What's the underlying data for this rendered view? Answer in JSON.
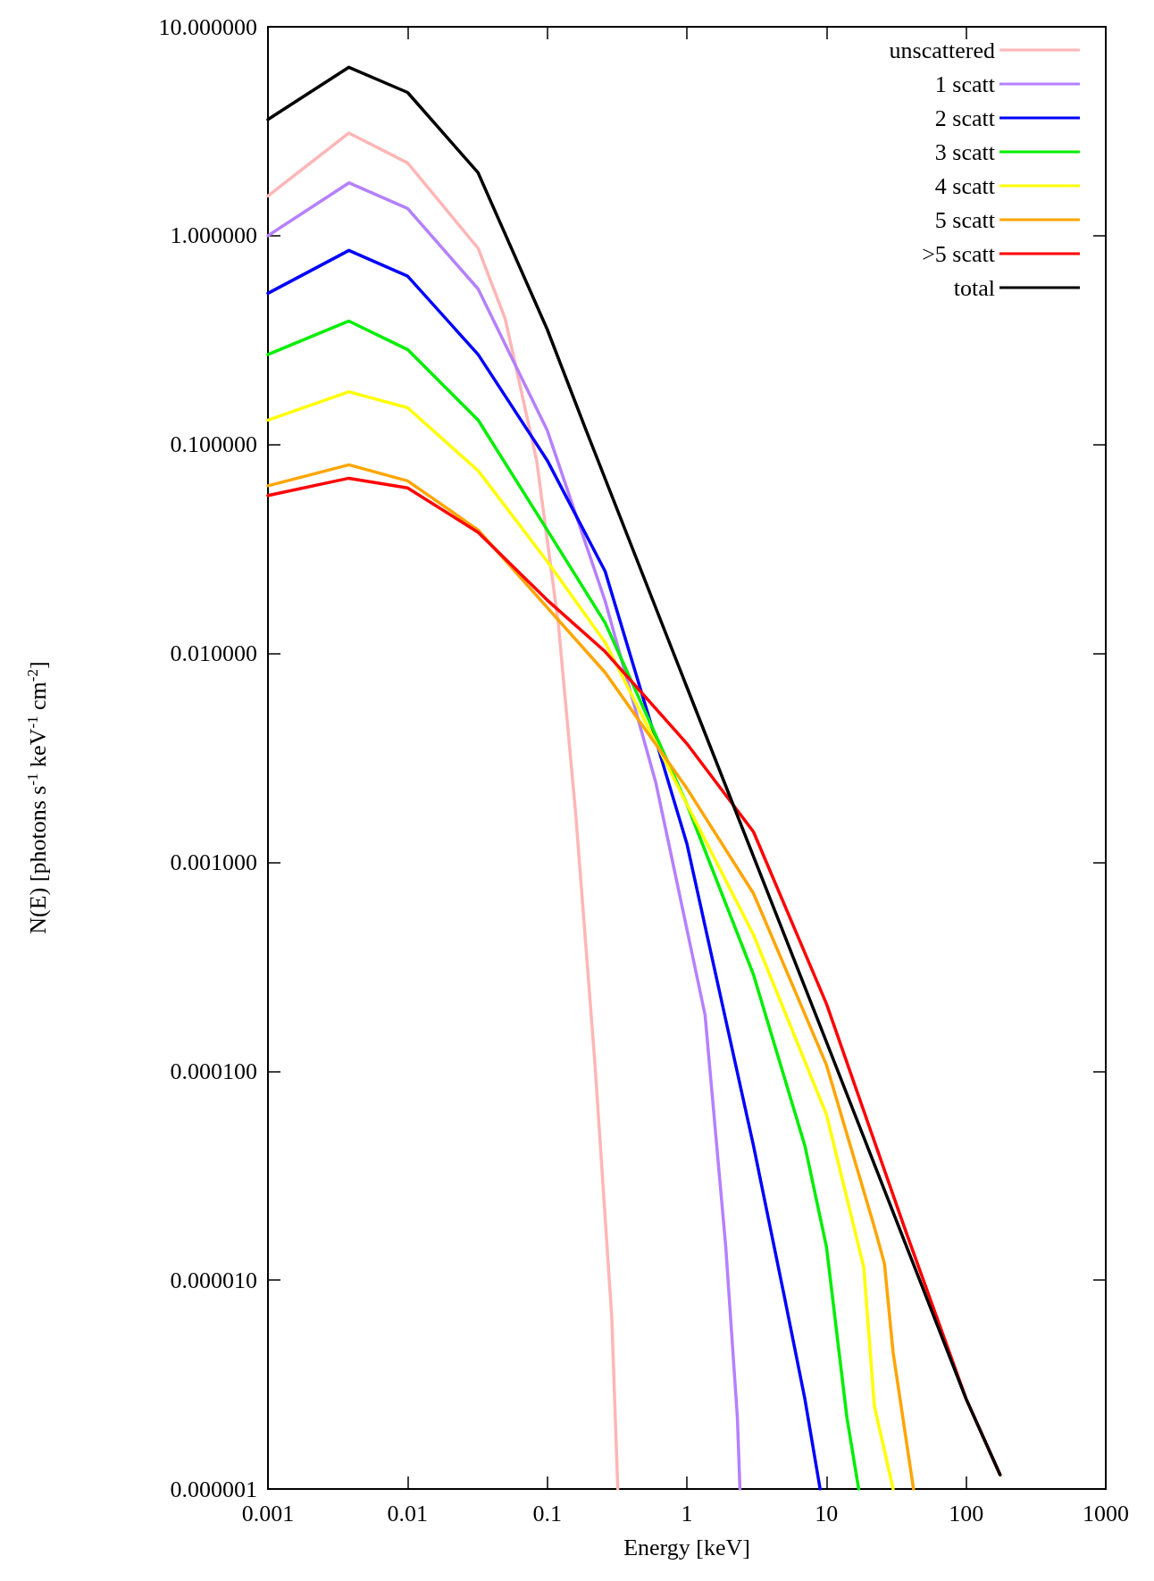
{
  "chart_data": {
    "type": "line",
    "xlabel": "Energy [keV]",
    "ylabel": "N(E) [photons s$^{-1}$ keV$^{-1}$ cm$^{-2}$]",
    "log": "xy",
    "xlim": [
      0.001,
      1000
    ],
    "ylim": [
      1e-06,
      10
    ],
    "xticks": [
      0.001,
      0.01,
      0.1,
      1,
      10,
      100,
      1000
    ],
    "yticks": [
      {
        "value": 1e-06,
        "label": "0.000001"
      },
      {
        "value": 1e-05,
        "label": "0.000010"
      },
      {
        "value": 0.0001,
        "label": "0.000100"
      },
      {
        "value": 0.001,
        "label": "0.001000"
      },
      {
        "value": 0.01,
        "label": "0.010000"
      },
      {
        "value": 0.1,
        "label": "0.100000"
      },
      {
        "value": 1,
        "label": "1.000000"
      },
      {
        "value": 10,
        "label": "10.000000"
      }
    ],
    "grid": false,
    "legend": "top right",
    "marker": "none",
    "line_style": "solid",
    "series": [
      {
        "name": "unscattered",
        "color": "#ffb6b6",
        "x": [
          0.001,
          0.0038,
          0.01,
          0.032,
          0.05,
          0.084,
          0.12,
          0.16,
          0.22,
          0.29,
          0.32
        ],
        "values": [
          1.55,
          3.1,
          2.23,
          0.87,
          0.4,
          0.084,
          0.014,
          0.0017,
          0.000107,
          6.6e-06,
          1e-06
        ]
      },
      {
        "name": "1 scatt",
        "color": "#b580ff",
        "x": [
          0.001,
          0.0038,
          0.01,
          0.032,
          0.1,
          0.26,
          0.6,
          1.35,
          1.9,
          2.3,
          2.4
        ],
        "values": [
          1.0,
          1.79,
          1.35,
          0.556,
          0.117,
          0.0178,
          0.0024,
          0.000186,
          1.44e-05,
          2.2e-06,
          1e-06
        ]
      },
      {
        "name": "2 scatt",
        "color": "#0000ff",
        "x": [
          0.001,
          0.0038,
          0.01,
          0.032,
          0.1,
          0.26,
          1,
          3,
          5,
          7,
          9
        ],
        "values": [
          0.53,
          0.85,
          0.64,
          0.27,
          0.084,
          0.0247,
          0.00123,
          4.4e-05,
          8.3e-06,
          2.7e-06,
          1e-06
        ]
      },
      {
        "name": "3 scatt",
        "color": "#00ee00",
        "x": [
          0.001,
          0.0038,
          0.01,
          0.032,
          0.1,
          0.26,
          1,
          3,
          7,
          10,
          14,
          17
        ],
        "values": [
          0.27,
          0.39,
          0.285,
          0.131,
          0.039,
          0.014,
          0.0019,
          0.00029,
          4.4e-05,
          1.44e-05,
          2.2e-06,
          1e-06
        ]
      },
      {
        "name": "4 scatt",
        "color": "#ffff00",
        "x": [
          0.001,
          0.0038,
          0.01,
          0.032,
          0.1,
          0.26,
          1,
          3,
          10,
          18.5,
          22,
          30
        ],
        "values": [
          0.131,
          0.179,
          0.15,
          0.075,
          0.0276,
          0.0113,
          0.0019,
          0.00045,
          6.2e-05,
          1.15e-05,
          2.5e-06,
          1e-06
        ]
      },
      {
        "name": "5 scatt",
        "color": "#ffa500",
        "x": [
          0.001,
          0.0038,
          0.01,
          0.032,
          0.1,
          0.26,
          1,
          3,
          10,
          22,
          26,
          30,
          42
        ],
        "values": [
          0.0635,
          0.08,
          0.067,
          0.039,
          0.0166,
          0.0081,
          0.00226,
          0.00071,
          0.000107,
          1.8e-05,
          1.2e-05,
          4.5e-06,
          1e-06
        ]
      },
      {
        "name": ">5 scatt",
        "color": "#ff0000",
        "x": [
          0.001,
          0.0038,
          0.01,
          0.032,
          0.1,
          0.26,
          1,
          3,
          10,
          36,
          100,
          175
        ],
        "values": [
          0.057,
          0.069,
          0.062,
          0.038,
          0.018,
          0.0102,
          0.0037,
          0.0014,
          0.00021,
          1.8e-05,
          2.7e-06,
          1.17e-06
        ]
      },
      {
        "name": "total",
        "color": "#000000",
        "x": [
          0.001,
          0.0038,
          0.01,
          0.032,
          0.1,
          0.19,
          1,
          10,
          100,
          175
        ],
        "values": [
          3.6,
          6.4,
          4.85,
          2.0,
          0.356,
          0.117,
          0.0069,
          0.000138,
          2.7e-06,
          1.17e-06
        ]
      }
    ]
  }
}
